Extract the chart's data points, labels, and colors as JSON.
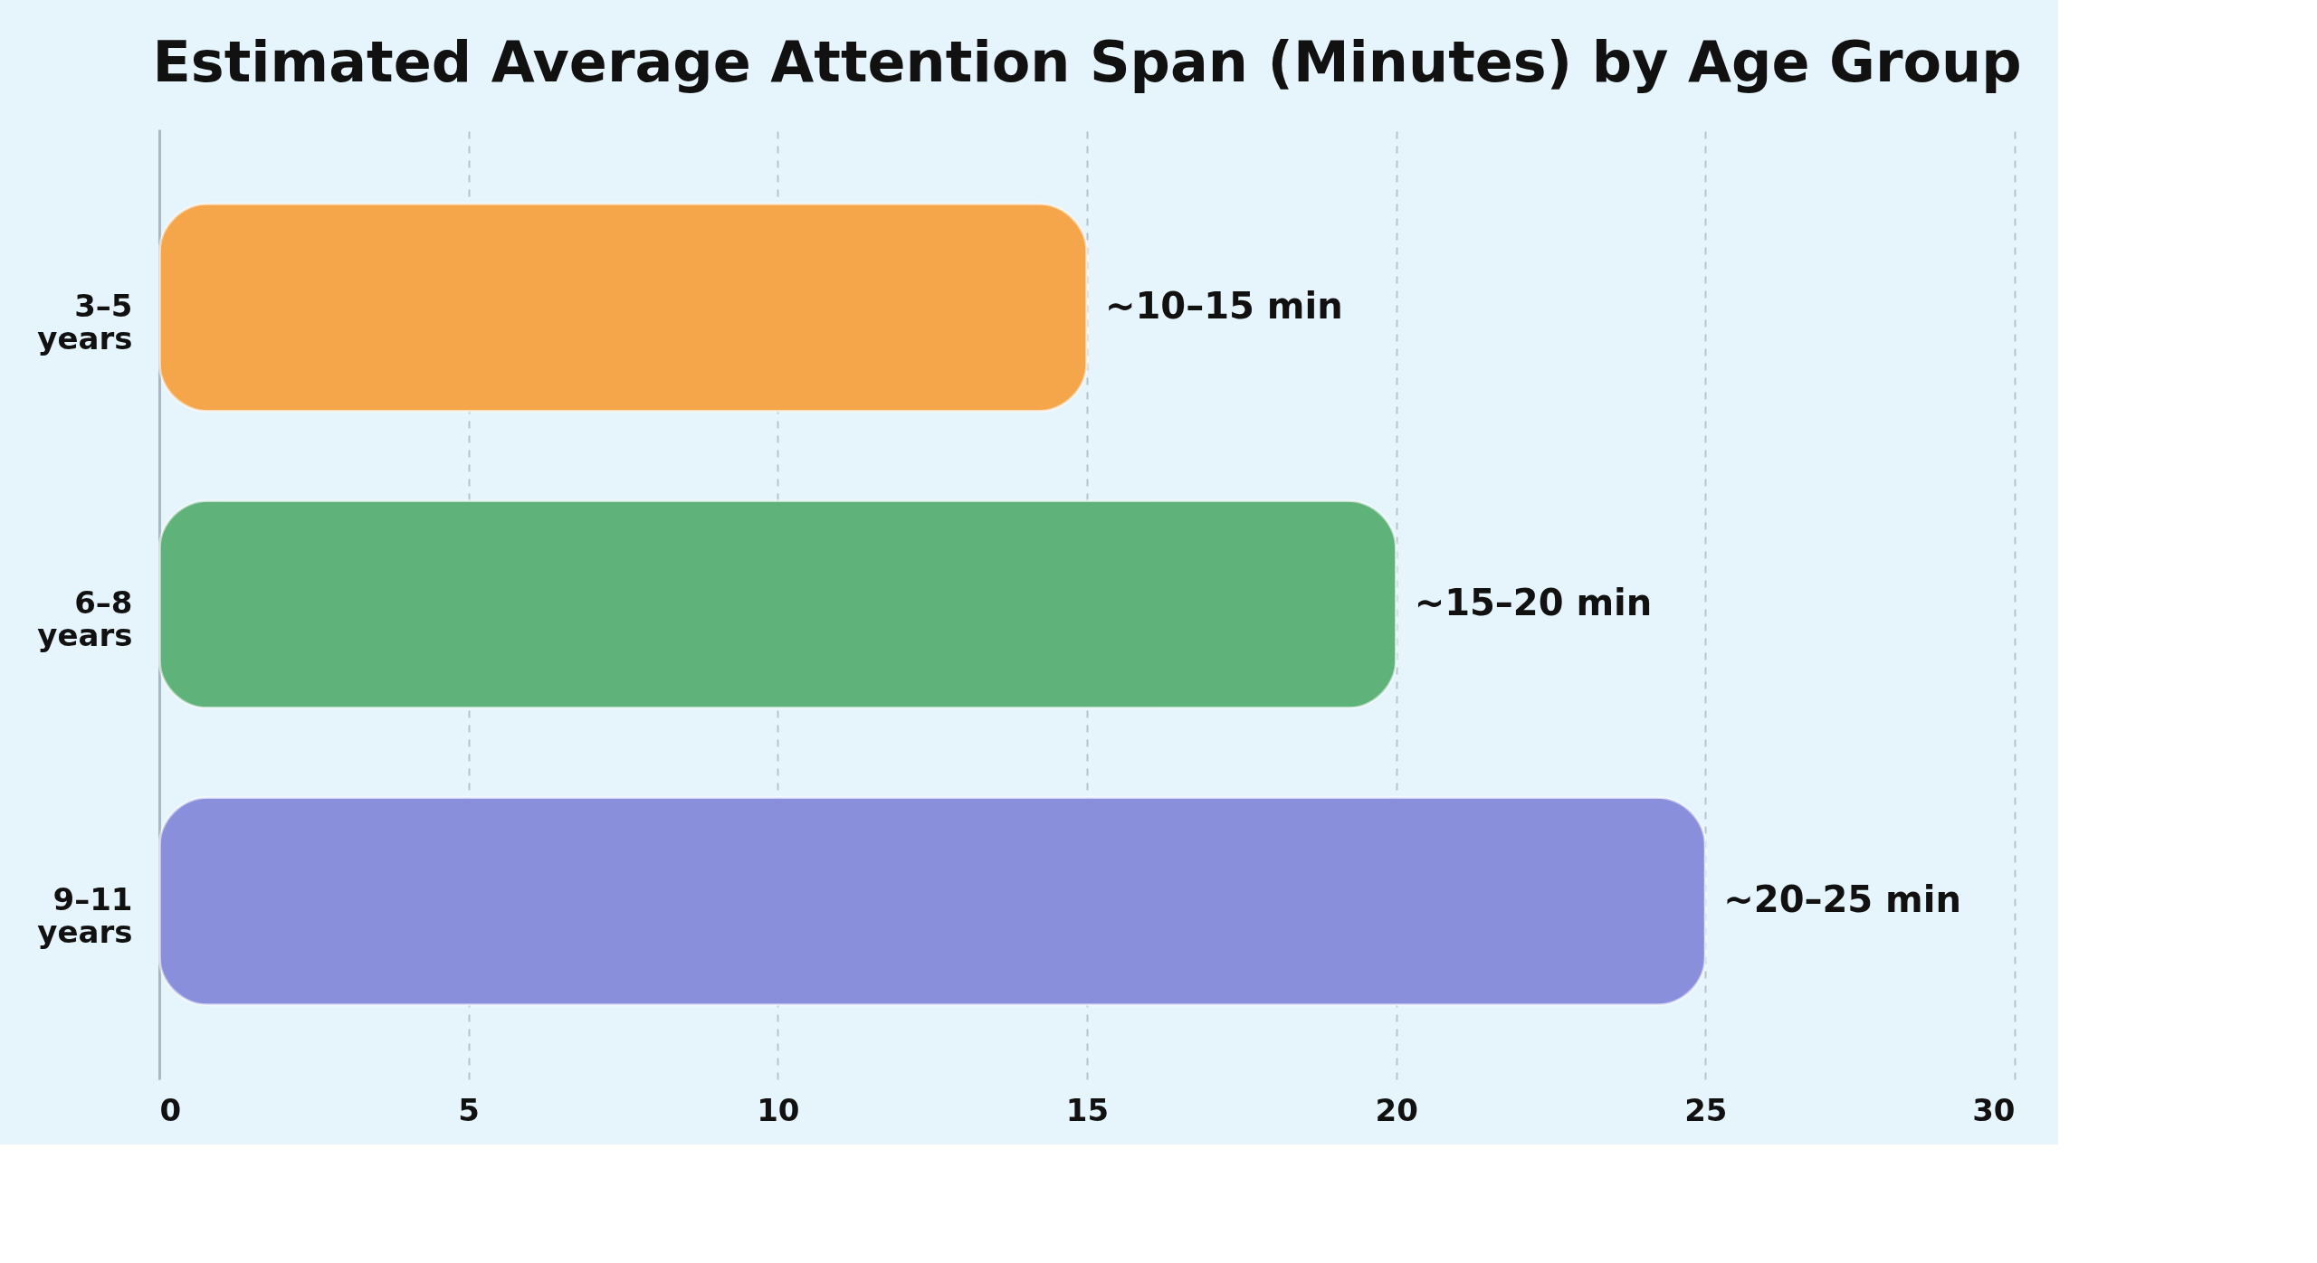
{
  "chart_data": {
    "type": "bar",
    "orientation": "horizontal",
    "title": "Estimated Average Attention Span (Minutes) by Age Group",
    "categories": [
      "3–5 years",
      "6–8 years",
      "9–11 years"
    ],
    "values": [
      15,
      20,
      25
    ],
    "colors": [
      "#f5a54a",
      "#5fb27a",
      "#8a8fdc"
    ],
    "value_labels": [
      "~10–15 min",
      "~15–20 min",
      "~20–25 min"
    ],
    "xlim": [
      0,
      30
    ],
    "xticks": [
      0,
      5,
      10,
      15,
      20,
      25,
      30
    ],
    "grid": "x"
  }
}
